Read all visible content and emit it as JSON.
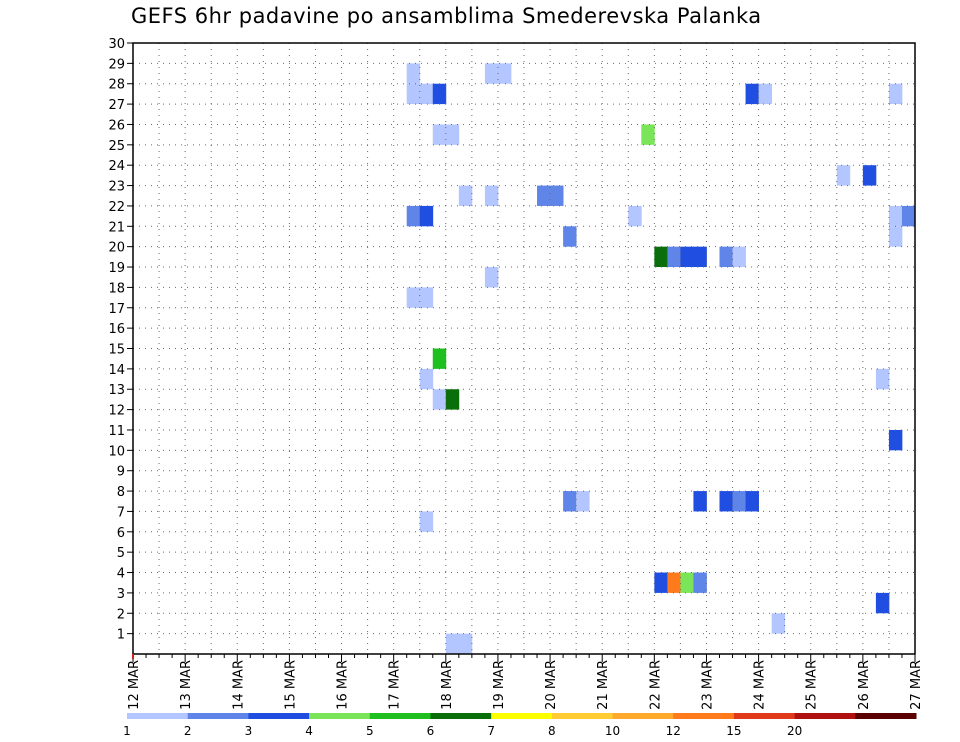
{
  "chart_data": {
    "type": "heatmap",
    "title": "GEFS 6hr padavine po ansamblima Smederevska Palanka",
    "xlabel": "",
    "ylabel": "",
    "x_unit": "6-hour step",
    "x_ticks": [
      "12 MAR",
      "13 MAR",
      "14 MAR",
      "15 MAR",
      "16 MAR",
      "17 MAR",
      "18 MAR",
      "19 MAR",
      "20 MAR",
      "21 MAR",
      "22 MAR",
      "23 MAR",
      "24 MAR",
      "25 MAR",
      "26 MAR",
      "27 MAR"
    ],
    "xlim": [
      0,
      60
    ],
    "y_ticks": [
      1,
      2,
      3,
      4,
      5,
      6,
      7,
      8,
      9,
      10,
      11,
      12,
      13,
      14,
      15,
      16,
      17,
      18,
      19,
      20,
      21,
      22,
      23,
      24,
      25,
      26,
      27,
      28,
      29,
      30
    ],
    "ylim": [
      0,
      30
    ],
    "grid": true,
    "colorbar": {
      "labels": [
        "1",
        "2",
        "3",
        "4",
        "5",
        "6",
        "7",
        "8",
        "10",
        "12",
        "15",
        "20"
      ],
      "colors": [
        "#b3c6ff",
        "#5f85e8",
        "#1f4ee0",
        "#7be55a",
        "#1ebf1e",
        "#0a6e0a",
        "#fcff00",
        "#ffcc33",
        "#ffaa2a",
        "#ff7a1a",
        "#e03a1a",
        "#b01010",
        "#5a0000"
      ]
    },
    "cells": [
      {
        "x": 22,
        "member": 29,
        "cls": 0
      },
      {
        "x": 22,
        "member": 28,
        "cls": 0
      },
      {
        "x": 23,
        "member": 28,
        "cls": 0
      },
      {
        "x": 24,
        "member": 28,
        "cls": 2
      },
      {
        "x": 28,
        "member": 29,
        "cls": 0
      },
      {
        "x": 29,
        "member": 29,
        "cls": 0
      },
      {
        "x": 48,
        "member": 28,
        "cls": 2
      },
      {
        "x": 49,
        "member": 28,
        "cls": 0
      },
      {
        "x": 59,
        "member": 28,
        "cls": 0
      },
      {
        "x": 24,
        "member": 26,
        "cls": 0
      },
      {
        "x": 25,
        "member": 26,
        "cls": 0
      },
      {
        "x": 40,
        "member": 26,
        "cls": 3
      },
      {
        "x": 55,
        "member": 24,
        "cls": 0
      },
      {
        "x": 57,
        "member": 24,
        "cls": 2
      },
      {
        "x": 26,
        "member": 23,
        "cls": 0
      },
      {
        "x": 28,
        "member": 23,
        "cls": 0
      },
      {
        "x": 32,
        "member": 23,
        "cls": 1
      },
      {
        "x": 33,
        "member": 23,
        "cls": 1
      },
      {
        "x": 22,
        "member": 22,
        "cls": 1
      },
      {
        "x": 23,
        "member": 22,
        "cls": 2
      },
      {
        "x": 39,
        "member": 22,
        "cls": 0
      },
      {
        "x": 59,
        "member": 22,
        "cls": 0
      },
      {
        "x": 60,
        "member": 22,
        "cls": 1
      },
      {
        "x": 34,
        "member": 21,
        "cls": 1
      },
      {
        "x": 59,
        "member": 21,
        "cls": 0
      },
      {
        "x": 41,
        "member": 20,
        "cls": 5
      },
      {
        "x": 42,
        "member": 20,
        "cls": 1
      },
      {
        "x": 43,
        "member": 20,
        "cls": 2
      },
      {
        "x": 44,
        "member": 20,
        "cls": 2
      },
      {
        "x": 46,
        "member": 20,
        "cls": 1
      },
      {
        "x": 47,
        "member": 20,
        "cls": 0
      },
      {
        "x": 28,
        "member": 19,
        "cls": 0
      },
      {
        "x": 22,
        "member": 18,
        "cls": 0
      },
      {
        "x": 23,
        "member": 18,
        "cls": 0
      },
      {
        "x": 24,
        "member": 15,
        "cls": 4
      },
      {
        "x": 23,
        "member": 14,
        "cls": 0
      },
      {
        "x": 58,
        "member": 14,
        "cls": 0
      },
      {
        "x": 24,
        "member": 13,
        "cls": 0
      },
      {
        "x": 25,
        "member": 13,
        "cls": 5
      },
      {
        "x": 59,
        "member": 11,
        "cls": 2
      },
      {
        "x": 34,
        "member": 8,
        "cls": 1
      },
      {
        "x": 35,
        "member": 8,
        "cls": 0
      },
      {
        "x": 44,
        "member": 8,
        "cls": 2
      },
      {
        "x": 46,
        "member": 8,
        "cls": 2
      },
      {
        "x": 47,
        "member": 8,
        "cls": 1
      },
      {
        "x": 48,
        "member": 8,
        "cls": 2
      },
      {
        "x": 23,
        "member": 7,
        "cls": 0
      },
      {
        "x": 41,
        "member": 4,
        "cls": 2
      },
      {
        "x": 42,
        "member": 4,
        "cls": 9
      },
      {
        "x": 43,
        "member": 4,
        "cls": 3
      },
      {
        "x": 44,
        "member": 4,
        "cls": 1
      },
      {
        "x": 58,
        "member": 3,
        "cls": 2
      },
      {
        "x": 50,
        "member": 2,
        "cls": 0
      },
      {
        "x": 25,
        "member": 1,
        "cls": 0
      },
      {
        "x": 26,
        "member": 1,
        "cls": 0
      }
    ]
  }
}
